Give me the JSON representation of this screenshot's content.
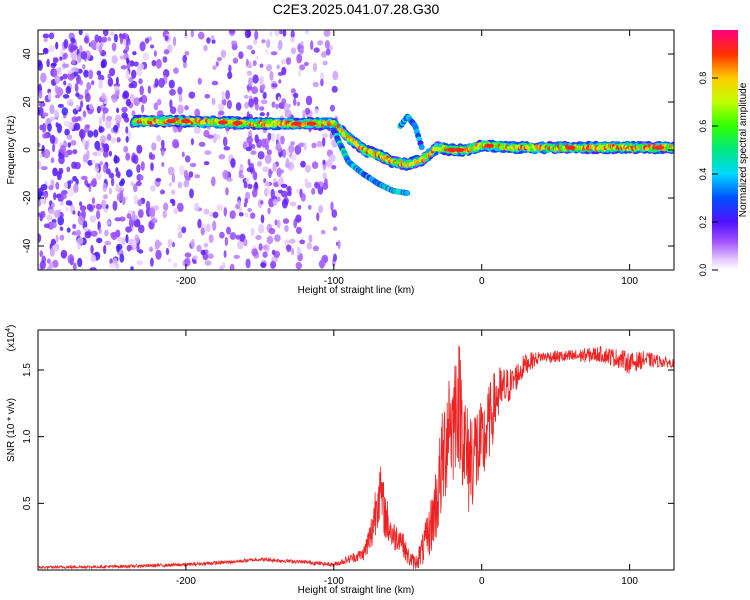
{
  "figure": {
    "title": "C2E3.2025.041.07.28.G30"
  },
  "chart_data": [
    {
      "type": "heatmap",
      "xlabel": "Height of straight line (km)",
      "ylabel": "Frequency (Hz)",
      "xlim": [
        -300,
        130
      ],
      "ylim": [
        -50,
        50
      ],
      "xticks": [
        -200,
        -100,
        0,
        100
      ],
      "yticks": [
        -40,
        -20,
        0,
        20,
        40
      ],
      "colorbar": {
        "label": "Normalized spectral amplitude",
        "range": [
          0,
          1
        ],
        "ticks": [
          0.0,
          0.2,
          0.4,
          0.6,
          0.8
        ]
      },
      "ridge": {
        "description_x_km": [
          -235,
          -200,
          -150,
          -100,
          -90,
          -80,
          -70,
          -60,
          -50,
          -40,
          -30,
          -20,
          -10,
          0,
          20,
          50,
          100,
          130
        ],
        "frequency_hz": [
          12,
          12,
          11,
          11,
          5,
          0,
          -2,
          -5,
          -6,
          -4,
          1,
          0,
          0,
          2,
          1,
          1,
          1,
          1
        ]
      },
      "branch": {
        "x_km": [
          -100,
          -90,
          -80,
          -70,
          -60,
          -50
        ],
        "frequency_hz": [
          8,
          -5,
          -10,
          -14,
          -17,
          -18
        ]
      },
      "spike": {
        "x_km": [
          -55,
          -50,
          -45,
          -40
        ],
        "frequency_hz": [
          10,
          14,
          10,
          0
        ]
      },
      "noise_region_x_km": [
        -300,
        -95
      ]
    },
    {
      "type": "line",
      "xlabel": "Height of straight line (km)",
      "ylabel": "SNR (10 * v/v)",
      "multiplier_label": "(x10",
      "multiplier_exp": "4",
      "multiplier_close": ")",
      "xlim": [
        -300,
        130
      ],
      "ylim": [
        0,
        1.8
      ],
      "xticks": [
        -200,
        -100,
        0,
        100
      ],
      "yticks": [
        0.5,
        1.0,
        1.5
      ],
      "series_color": "#ee2222",
      "envelope": {
        "x": [
          -300,
          -250,
          -200,
          -170,
          -150,
          -120,
          -100,
          -90,
          -80,
          -75,
          -72,
          -70,
          -68,
          -65,
          -60,
          -55,
          -50,
          -45,
          -40,
          -35,
          -30,
          -28,
          -25,
          -22,
          -20,
          -17,
          -14,
          -10,
          -5,
          0,
          5,
          10,
          20,
          30,
          40,
          60,
          80,
          95,
          100,
          110,
          130
        ],
        "y": [
          0.02,
          0.025,
          0.04,
          0.06,
          0.08,
          0.06,
          0.04,
          0.08,
          0.12,
          0.25,
          0.45,
          0.6,
          0.55,
          0.4,
          0.25,
          0.25,
          0.1,
          0.05,
          0.15,
          0.3,
          0.55,
          0.7,
          0.9,
          1.2,
          1.05,
          1.3,
          1.2,
          0.8,
          0.9,
          0.9,
          1.1,
          1.3,
          1.4,
          1.55,
          1.6,
          1.6,
          1.62,
          1.58,
          1.55,
          1.58,
          1.55
        ]
      },
      "noise_amplitude": {
        "x": [
          -300,
          -100,
          -80,
          -70,
          -60,
          -45,
          -35,
          -25,
          -15,
          -10,
          0,
          20,
          40,
          80,
          100,
          130
        ],
        "a": [
          0.01,
          0.015,
          0.05,
          0.25,
          0.12,
          0.05,
          0.2,
          0.45,
          0.5,
          0.45,
          0.35,
          0.12,
          0.04,
          0.06,
          0.08,
          0.03
        ]
      }
    }
  ]
}
